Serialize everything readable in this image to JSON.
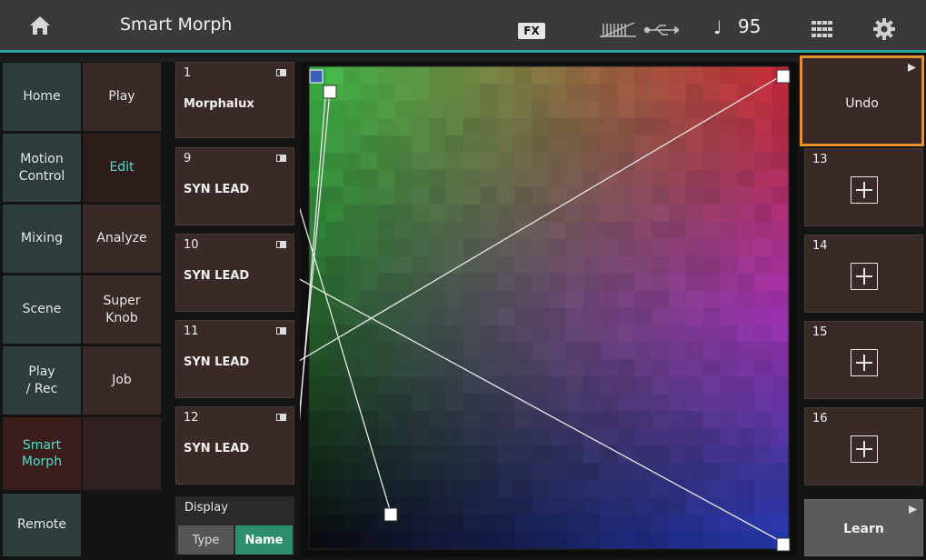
{
  "topbar": {
    "title": "Smart Morph",
    "fx_label": "FX",
    "note_symbol": "♩",
    "tempo": "95",
    "icons": [
      "home-icon",
      "midi-icon",
      "usb-icon",
      "grid-icon",
      "gear-icon"
    ]
  },
  "nav": {
    "left": [
      "Home",
      "Motion\nControl",
      "Mixing",
      "Scene",
      "Play\n/ Rec",
      "Smart\nMorph",
      "Remote"
    ],
    "right": [
      "Play",
      "Edit",
      "Analyze",
      "Super\nKnob",
      "Job",
      ""
    ],
    "active_left": "Smart Morph",
    "active_right": "Edit"
  },
  "parts": [
    {
      "number": "1",
      "name": "Morphalux"
    },
    {
      "number": "9",
      "name": "SYN LEAD"
    },
    {
      "number": "10",
      "name": "SYN LEAD"
    },
    {
      "number": "11",
      "name": "SYN LEAD"
    },
    {
      "number": "12",
      "name": "SYN LEAD"
    }
  ],
  "display": {
    "label": "Display",
    "type_label": "Type",
    "name_label": "Name",
    "selected": "Name"
  },
  "right": {
    "undo_label": "Undo",
    "slots": [
      "13",
      "14",
      "15",
      "16"
    ],
    "learn_label": "Learn"
  },
  "colors": {
    "accent": "#4de0cd",
    "focus": "#e8902c",
    "selected_button": "#2e8c6f"
  }
}
